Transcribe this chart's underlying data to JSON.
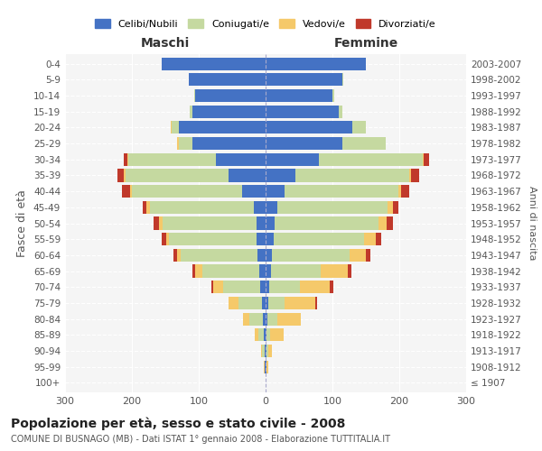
{
  "age_groups": [
    "100+",
    "95-99",
    "90-94",
    "85-89",
    "80-84",
    "75-79",
    "70-74",
    "65-69",
    "60-64",
    "55-59",
    "50-54",
    "45-49",
    "40-44",
    "35-39",
    "30-34",
    "25-29",
    "20-24",
    "15-19",
    "10-14",
    "5-9",
    "0-4"
  ],
  "birth_years": [
    "≤ 1907",
    "1908-1912",
    "1913-1917",
    "1918-1922",
    "1923-1927",
    "1928-1932",
    "1933-1937",
    "1938-1942",
    "1943-1947",
    "1948-1952",
    "1953-1957",
    "1958-1962",
    "1963-1967",
    "1968-1972",
    "1973-1977",
    "1978-1982",
    "1983-1987",
    "1988-1992",
    "1993-1997",
    "1998-2002",
    "2003-2007"
  ],
  "male": {
    "celibi": [
      0,
      1,
      2,
      3,
      4,
      5,
      8,
      10,
      12,
      14,
      14,
      18,
      35,
      55,
      75,
      110,
      130,
      110,
      105,
      115,
      155
    ],
    "coniugati": [
      0,
      1,
      3,
      8,
      20,
      35,
      55,
      85,
      115,
      130,
      140,
      155,
      165,
      155,
      130,
      20,
      10,
      3,
      2,
      0,
      0
    ],
    "vedovi": [
      0,
      1,
      2,
      5,
      10,
      15,
      15,
      10,
      5,
      5,
      5,
      5,
      3,
      2,
      2,
      2,
      2,
      0,
      0,
      0,
      0
    ],
    "divorziati": [
      0,
      0,
      0,
      0,
      0,
      0,
      3,
      5,
      6,
      7,
      8,
      6,
      12,
      10,
      5,
      0,
      0,
      0,
      0,
      0,
      0
    ]
  },
  "female": {
    "nubili": [
      0,
      1,
      1,
      2,
      3,
      4,
      6,
      8,
      10,
      12,
      14,
      18,
      28,
      45,
      80,
      115,
      130,
      110,
      100,
      115,
      150
    ],
    "coniugate": [
      0,
      1,
      3,
      5,
      15,
      25,
      45,
      75,
      115,
      135,
      155,
      165,
      170,
      170,
      155,
      65,
      20,
      5,
      3,
      1,
      0
    ],
    "vedove": [
      0,
      2,
      5,
      20,
      35,
      45,
      45,
      40,
      25,
      18,
      12,
      8,
      5,
      3,
      2,
      0,
      0,
      0,
      0,
      0,
      0
    ],
    "divorziate": [
      0,
      0,
      0,
      0,
      0,
      3,
      5,
      5,
      7,
      8,
      10,
      8,
      12,
      12,
      8,
      0,
      0,
      0,
      0,
      0,
      0
    ]
  },
  "colors": {
    "celibi": "#4472c4",
    "coniugati": "#c5d9a0",
    "vedovi": "#f5c96a",
    "divorziati": "#c0392b"
  },
  "xlim": 300,
  "title": "Popolazione per età, sesso e stato civile - 2008",
  "subtitle": "COMUNE DI BUSNAGO (MB) - Dati ISTAT 1° gennaio 2008 - Elaborazione TUTTITALIA.IT",
  "xlabel_left": "Maschi",
  "xlabel_right": "Femmine",
  "ylabel_left": "Fasce di età",
  "ylabel_right": "Anni di nascita",
  "legend_labels": [
    "Celibi/Nubili",
    "Coniugati/e",
    "Vedovi/e",
    "Divorziati/e"
  ],
  "bg_color": "#ffffff",
  "plot_bg_color": "#f5f5f5"
}
